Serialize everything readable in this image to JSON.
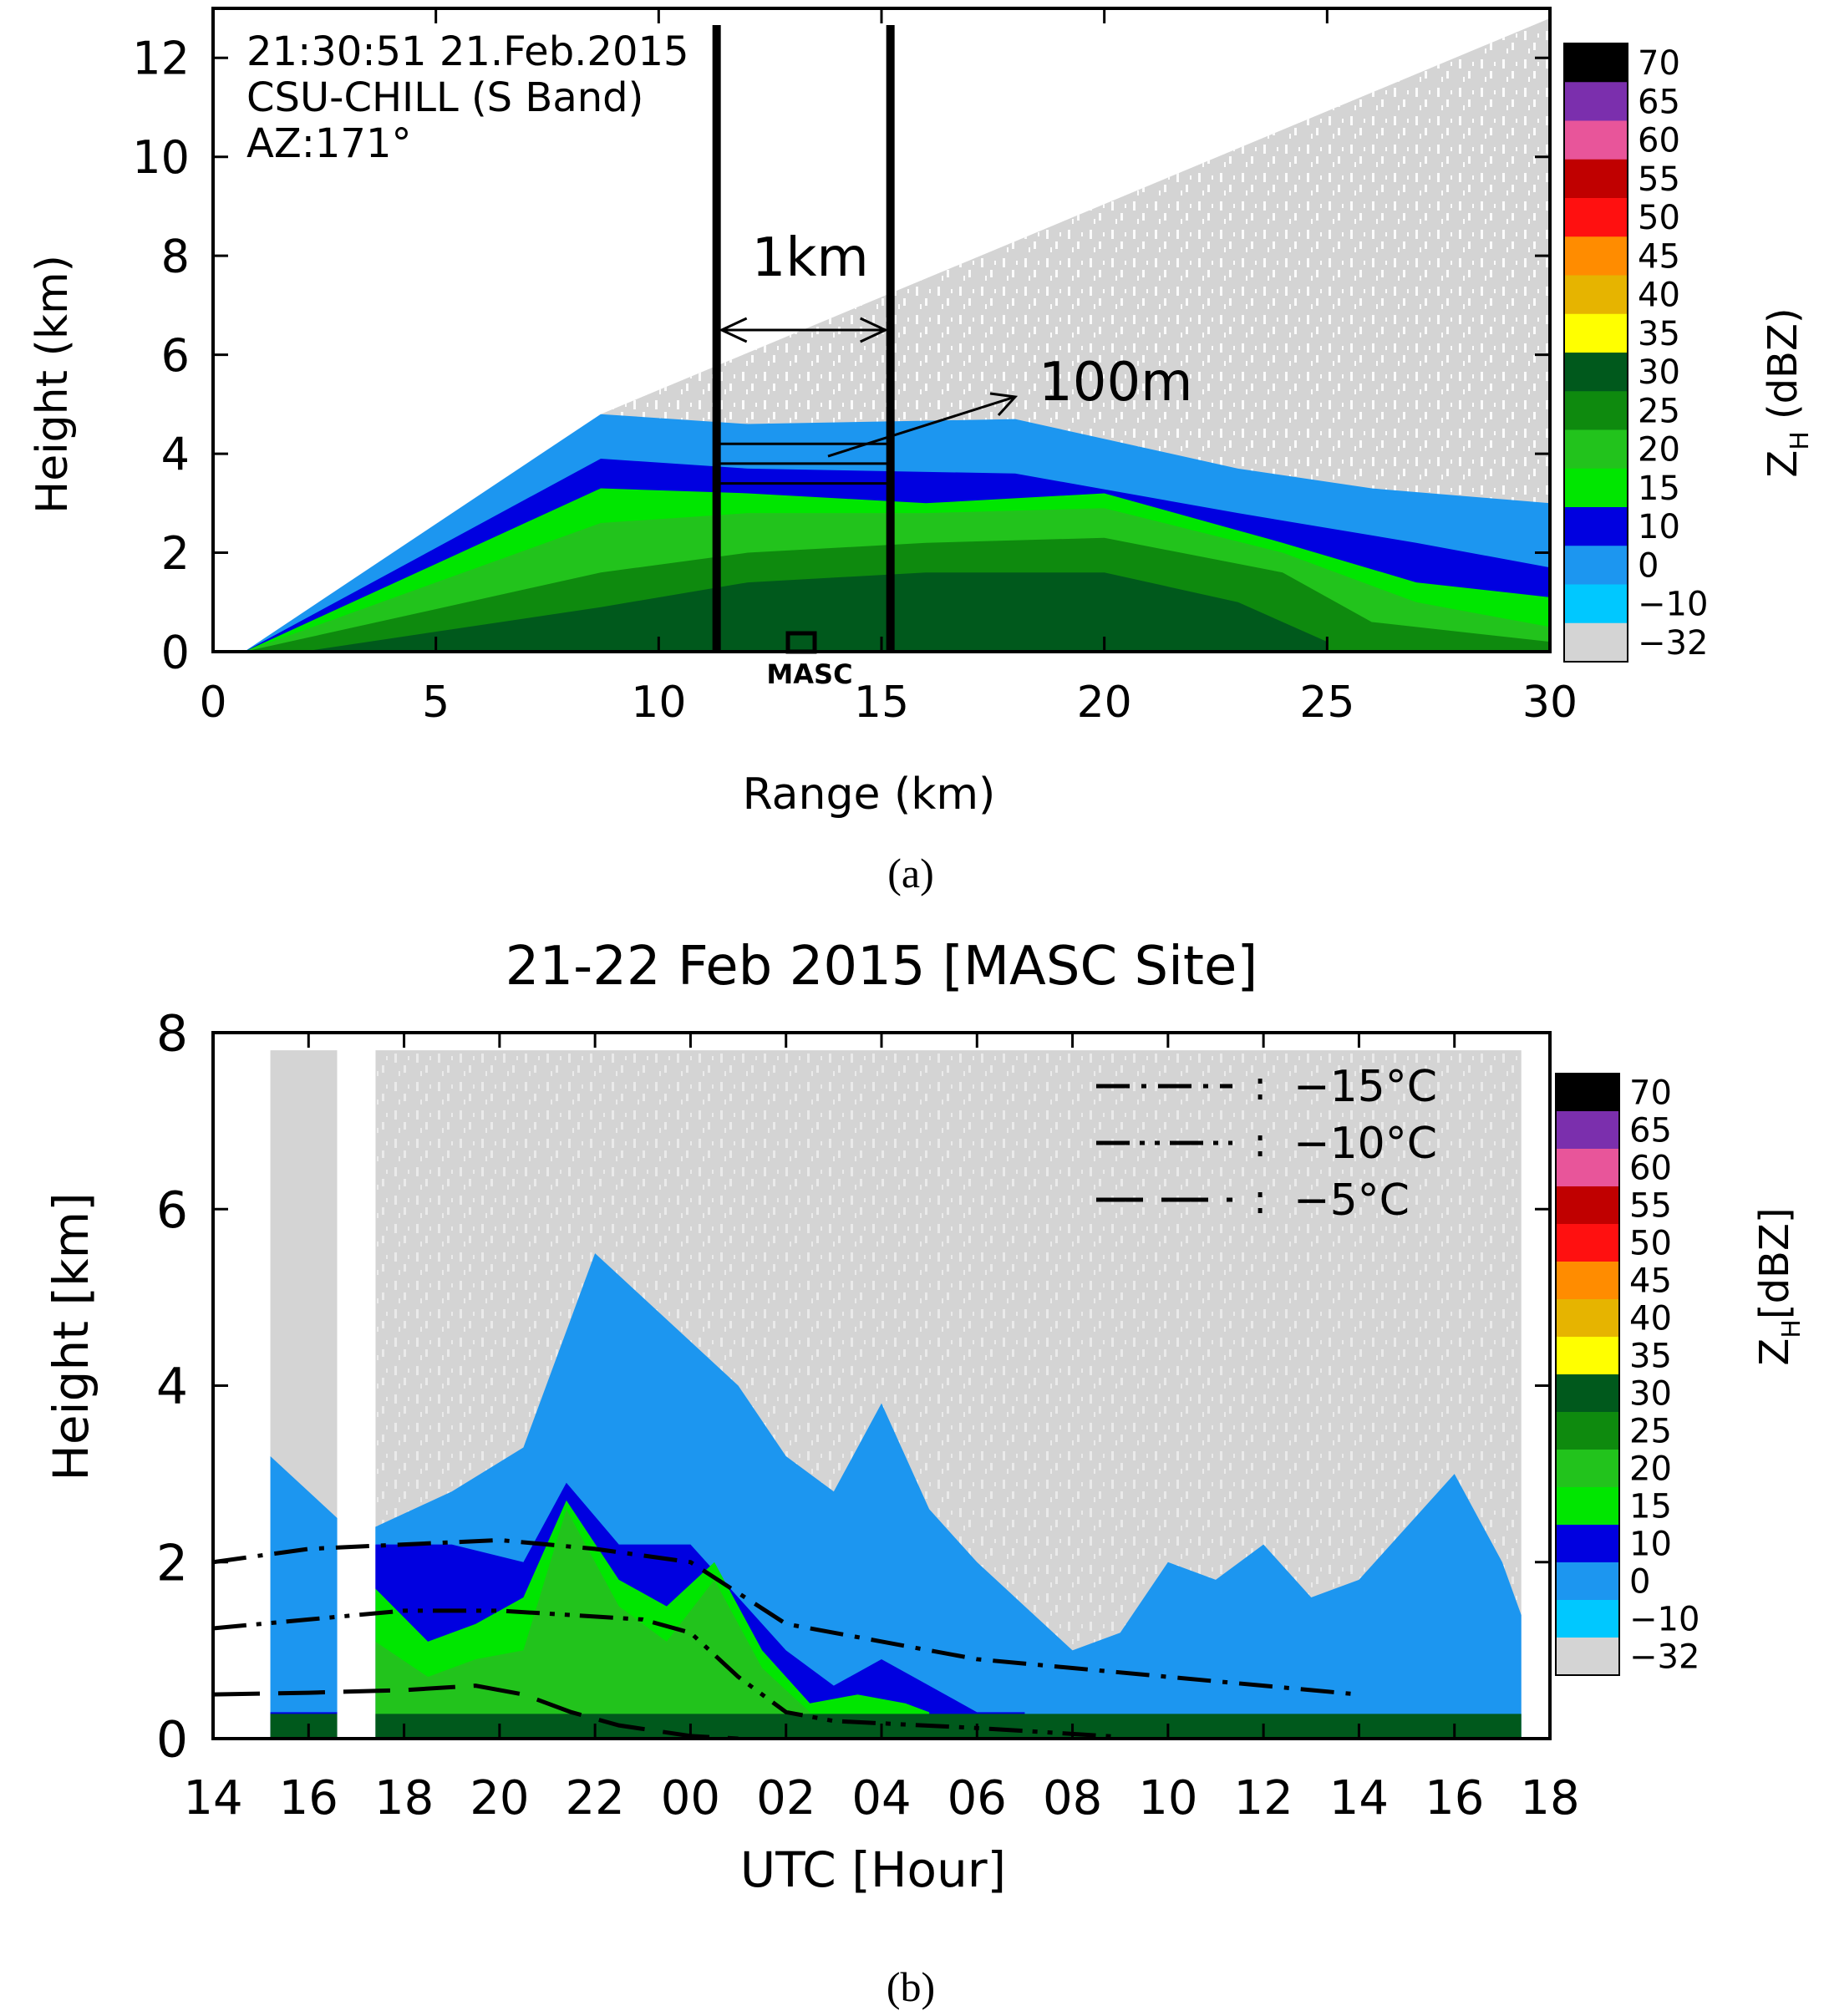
{
  "chart_data": [
    {
      "id": "a",
      "type": "heatmap",
      "caption": "(a)",
      "title_lines": [
        "21:30:51 21.Feb.2015",
        "CSU-CHILL (S Band)",
        "AZ:171°"
      ],
      "xlabel": "Range (km)",
      "ylabel": "Height (km)",
      "xlim": [
        0,
        30
      ],
      "ylim": [
        0,
        13
      ],
      "xticks": [
        "0",
        "5",
        "10",
        "15",
        "20",
        "25",
        "30"
      ],
      "xtick_values": [
        0,
        5,
        10,
        15,
        20,
        25,
        30
      ],
      "yticks": [
        "0",
        "2",
        "4",
        "6",
        "8",
        "10",
        "12"
      ],
      "ytick_values": [
        0,
        2,
        4,
        6,
        8,
        10,
        12
      ],
      "colorbar_label": "Z",
      "colorbar_sub": "H",
      "colorbar_unit": "(dBZ)",
      "annotations": {
        "box_width": "1km",
        "box_range": [
          11.3,
          15.2
        ],
        "layer_spacing": "100m",
        "layer_heights": [
          3.4,
          3.8,
          4.2
        ],
        "site_label": "MASC",
        "site_range": 13.2
      },
      "radar_field": {
        "beam_top": [
          [
            0.7,
            0
          ],
          [
            8.7,
            4.8
          ],
          [
            30,
            12.8
          ]
        ],
        "layers": [
          {
            "dbz": "0",
            "top": [
              [
                0.7,
                0
              ],
              [
                8.7,
                4.8
              ],
              [
                12,
                4.6
              ],
              [
                18,
                4.7
              ],
              [
                23,
                3.7
              ],
              [
                26,
                3.3
              ],
              [
                30,
                3.0
              ]
            ]
          },
          {
            "dbz": "10",
            "top": [
              [
                0.7,
                0
              ],
              [
                8.7,
                3.9
              ],
              [
                12,
                3.7
              ],
              [
                18,
                3.6
              ],
              [
                23,
                2.8
              ],
              [
                27,
                2.2
              ],
              [
                30,
                1.7
              ]
            ]
          },
          {
            "dbz": "15",
            "top": [
              [
                0.7,
                0
              ],
              [
                8.7,
                3.3
              ],
              [
                12,
                3.2
              ],
              [
                16,
                3.0
              ],
              [
                20,
                3.2
              ],
              [
                24,
                2.2
              ],
              [
                27,
                1.4
              ],
              [
                30,
                1.1
              ]
            ]
          },
          {
            "dbz": "20",
            "top": [
              [
                0.7,
                0
              ],
              [
                8.7,
                2.6
              ],
              [
                12,
                2.8
              ],
              [
                16,
                2.8
              ],
              [
                20,
                2.9
              ],
              [
                24,
                2.0
              ],
              [
                27,
                1.0
              ],
              [
                30,
                0.5
              ]
            ]
          },
          {
            "dbz": "25",
            "top": [
              [
                0.7,
                0
              ],
              [
                8.7,
                1.6
              ],
              [
                12,
                2.0
              ],
              [
                16,
                2.2
              ],
              [
                20,
                2.3
              ],
              [
                24,
                1.6
              ],
              [
                26,
                0.6
              ],
              [
                30,
                0.2
              ]
            ]
          },
          {
            "dbz": "30",
            "top": [
              [
                2,
                0
              ],
              [
                8.7,
                0.9
              ],
              [
                12,
                1.4
              ],
              [
                16,
                1.6
              ],
              [
                20,
                1.6
              ],
              [
                23,
                1.0
              ],
              [
                25,
                0.2
              ]
            ]
          }
        ]
      }
    },
    {
      "id": "b",
      "type": "heatmap",
      "caption": "(b)",
      "title": "21-22 Feb 2015 [MASC Site]",
      "xlabel": "UTC [Hour]",
      "ylabel": "Height [km]",
      "xlim": [
        14,
        42
      ],
      "ylim": [
        0,
        8
      ],
      "xticks": [
        "14",
        "16",
        "18",
        "20",
        "22",
        "00",
        "02",
        "04",
        "06",
        "08",
        "10",
        "12",
        "14",
        "16",
        "18"
      ],
      "xtick_values": [
        14,
        16,
        18,
        20,
        22,
        24,
        26,
        28,
        30,
        32,
        34,
        36,
        38,
        40,
        42
      ],
      "yticks": [
        "0",
        "2",
        "4",
        "6",
        "8"
      ],
      "ytick_values": [
        0,
        2,
        4,
        6,
        8
      ],
      "colorbar_label": "Z",
      "colorbar_sub": "H",
      "colorbar_unit": "[dBZ]",
      "data_gap": [
        16.6,
        17.4
      ],
      "echo": {
        "layers": [
          {
            "dbz": "0",
            "top": [
              [
                15.2,
                3.2
              ],
              [
                16.6,
                2.5
              ],
              [
                17.4,
                2.4
              ],
              [
                19,
                2.8
              ],
              [
                20.5,
                3.3
              ],
              [
                22,
                5.5
              ],
              [
                23,
                5.0
              ],
              [
                25,
                4.0
              ],
              [
                26,
                3.2
              ],
              [
                27,
                2.8
              ],
              [
                28,
                3.8
              ],
              [
                29,
                2.6
              ],
              [
                30,
                2.0
              ],
              [
                31,
                1.5
              ],
              [
                32,
                1.0
              ],
              [
                33,
                1.2
              ],
              [
                34,
                2.0
              ],
              [
                35,
                1.8
              ],
              [
                36,
                2.2
              ],
              [
                37,
                1.6
              ],
              [
                38,
                1.8
              ],
              [
                39,
                2.4
              ],
              [
                40,
                3.0
              ],
              [
                41,
                2.0
              ],
              [
                41.4,
                1.4
              ]
            ]
          },
          {
            "dbz": "10",
            "top": [
              [
                15.2,
                0.3
              ],
              [
                16.6,
                0.3
              ],
              [
                17.4,
                2.2
              ],
              [
                19,
                2.2
              ],
              [
                20.5,
                2.0
              ],
              [
                21.4,
                2.9
              ],
              [
                22.5,
                2.2
              ],
              [
                24,
                2.2
              ],
              [
                25,
                1.6
              ],
              [
                26,
                1.0
              ],
              [
                27,
                0.6
              ],
              [
                28,
                0.9
              ],
              [
                29,
                0.6
              ],
              [
                30,
                0.3
              ],
              [
                31,
                0.3
              ]
            ]
          },
          {
            "dbz": "15",
            "top": [
              [
                17.4,
                1.7
              ],
              [
                18.5,
                1.1
              ],
              [
                19.5,
                1.3
              ],
              [
                20.5,
                1.6
              ],
              [
                21.4,
                2.7
              ],
              [
                22.5,
                1.8
              ],
              [
                23.5,
                1.5
              ],
              [
                24.5,
                2.0
              ],
              [
                25.5,
                1.0
              ],
              [
                26.5,
                0.4
              ],
              [
                27.5,
                0.5
              ],
              [
                28.5,
                0.4
              ],
              [
                29,
                0.3
              ]
            ]
          },
          {
            "dbz": "20",
            "top": [
              [
                17.4,
                1.1
              ],
              [
                18.5,
                0.7
              ],
              [
                19.5,
                0.9
              ],
              [
                20.5,
                1.0
              ],
              [
                21.4,
                2.6
              ],
              [
                22.5,
                1.5
              ],
              [
                23.5,
                1.1
              ],
              [
                24.5,
                1.8
              ],
              [
                25.5,
                0.8
              ],
              [
                26.5,
                0.3
              ]
            ]
          },
          {
            "dbz": "30",
            "top": [
              [
                15.2,
                0.28
              ],
              [
                16.6,
                0.28
              ],
              [
                17.4,
                0.28
              ],
              [
                41.4,
                0.28
              ]
            ]
          }
        ]
      },
      "isotherms": [
        {
          "label": "−15°C",
          "style": "dash-dot",
          "points": [
            [
              14,
              2.0
            ],
            [
              16,
              2.15
            ],
            [
              18,
              2.2
            ],
            [
              20,
              2.25
            ],
            [
              22,
              2.15
            ],
            [
              24,
              2.0
            ],
            [
              26,
              1.3
            ],
            [
              28,
              1.1
            ],
            [
              30,
              0.9
            ],
            [
              32,
              0.8
            ],
            [
              34,
              0.7
            ],
            [
              36,
              0.6
            ],
            [
              38,
              0.5
            ]
          ]
        },
        {
          "label": "−10°C",
          "style": "dash-dot-dot",
          "points": [
            [
              14,
              1.25
            ],
            [
              16,
              1.35
            ],
            [
              18,
              1.45
            ],
            [
              20,
              1.45
            ],
            [
              21.5,
              1.4
            ],
            [
              23,
              1.35
            ],
            [
              24,
              1.2
            ],
            [
              25,
              0.7
            ],
            [
              26,
              0.3
            ],
            [
              27,
              0.2
            ],
            [
              30,
              0.12
            ],
            [
              33,
              0.02
            ]
          ]
        },
        {
          "label": "−5°C",
          "style": "long-dash",
          "points": [
            [
              14,
              0.5
            ],
            [
              16,
              0.52
            ],
            [
              18,
              0.55
            ],
            [
              19.5,
              0.6
            ],
            [
              20.5,
              0.5
            ],
            [
              21.5,
              0.3
            ],
            [
              22.5,
              0.15
            ],
            [
              24,
              0.03
            ],
            [
              25,
              0.0
            ]
          ]
        }
      ]
    }
  ],
  "colorbar": {
    "labels": [
      "70",
      "65",
      "60",
      "55",
      "50",
      "45",
      "40",
      "35",
      "30",
      "25",
      "20",
      "15",
      "10",
      "0",
      "−10",
      "−32"
    ],
    "colors": [
      "#000000",
      "#7b2fad",
      "#e8559a",
      "#c00000",
      "#ff1010",
      "#ff8c00",
      "#e6b400",
      "#ffff00",
      "#00591c",
      "#0e8a0e",
      "#22c31c",
      "#00e600",
      "#0000e0",
      "#1c96f0",
      "#00c8ff",
      "#d4d4d4"
    ]
  }
}
